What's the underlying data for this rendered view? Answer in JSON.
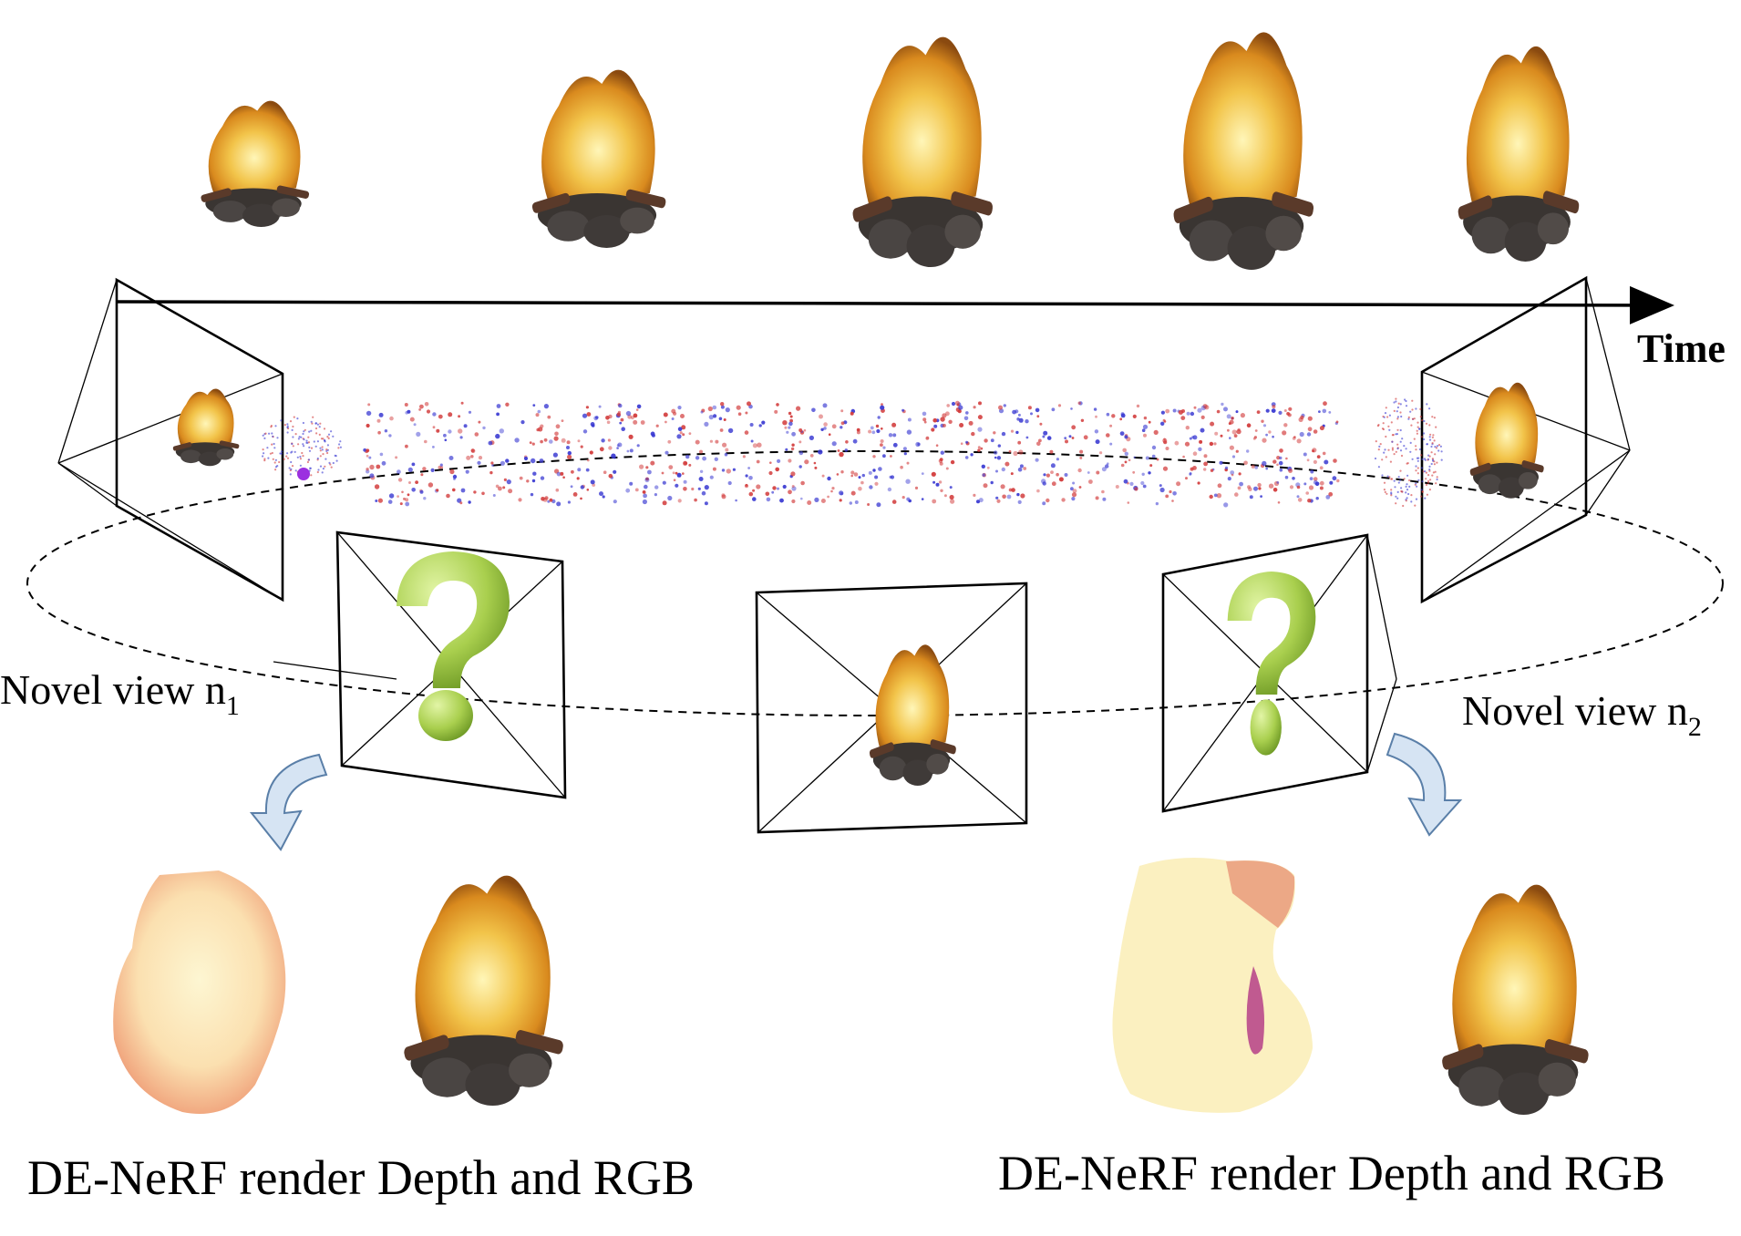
{
  "labels": {
    "time": "Time",
    "novel_view_1": "Novel view n",
    "novel_view_1_sub": "1",
    "novel_view_2": "Novel view n",
    "novel_view_2_sub": "2",
    "render_left": "DE-NeRF render Depth and RGB",
    "render_right": "DE-NeRF render Depth and RGB"
  },
  "timeline": {
    "frame_count": 5
  },
  "icons": {
    "fire": "campfire-icon",
    "question": "question-mark-icon",
    "arrow": "curved-arrow-icon"
  },
  "colors": {
    "point_red": "#d23a3a",
    "point_blue": "#3a3ad2",
    "question_green": "#a9cf4e",
    "arrow_fill": "#d6e4f3",
    "arrow_stroke": "#5a7fa8"
  }
}
